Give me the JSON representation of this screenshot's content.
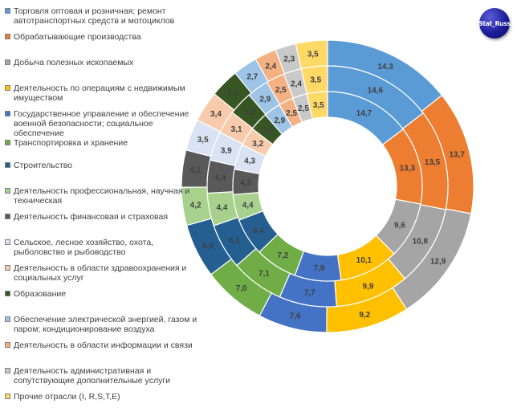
{
  "logo": {
    "text": "Stat_Russ"
  },
  "chart_data": {
    "type": "donut",
    "categories": [
      {
        "name": "Торговля оптовая и розничная; ремонт автотранспортных средств и мотоциклов",
        "color": "#5b9bd5"
      },
      {
        "name": "Обрабатывающие производства",
        "color": "#ed7d31"
      },
      {
        "name": "Добыча полезных ископаемых",
        "color": "#a5a5a5"
      },
      {
        "name": "Деятельность по операциям с недвижимым имуществом",
        "color": "#ffc000"
      },
      {
        "name": "Государственное управление и обеспечение военной безопасности; социальное обеспечение",
        "color": "#4472c4"
      },
      {
        "name": "Транспортировка и хранение",
        "color": "#70ad47"
      },
      {
        "name": "Строительство",
        "color": "#255e91"
      },
      {
        "name": "Деятельность профессиональная, научная и техническая",
        "color": "#a9d18e"
      },
      {
        "name": "Деятельность финансовая и страховая",
        "color": "#595959"
      },
      {
        "name": "Сельское, лесное хозяйство, охота, рыболовство и рыбоводство",
        "color": "#dae3f3"
      },
      {
        "name": "Деятельность в области здравоохранения и социальных услуг",
        "color": "#f8cbad"
      },
      {
        "name": "Образование",
        "color": "#375623"
      },
      {
        "name": "Обеспечение электрической энергией, газом и паром; кондиционирование воздуха",
        "color": "#9dc3e6"
      },
      {
        "name": "Деятельность в области информации и связи",
        "color": "#f4b183"
      },
      {
        "name": "Деятельность административная и сопутствующие дополнительные услуги",
        "color": "#c9c9c9"
      },
      {
        "name": "Прочие отрасли (I, R,S,T,E)",
        "color": "#ffd966"
      }
    ],
    "series": [
      {
        "values": [
          14.3,
          13.7,
          12.9,
          9.2,
          7.6,
          7.0,
          6.0,
          4.2,
          4.1,
          3.5,
          3.4,
          3.2,
          2.7,
          2.4,
          2.3,
          3.5
        ],
        "labels": [
          "14,3",
          "13,7",
          "12,9",
          "9,2",
          "7,6",
          "7,0",
          "6,0",
          "4,2",
          "4,1",
          "3,5",
          "3,4",
          "3,2",
          "2,7",
          "2,4",
          "2,3",
          "3,5"
        ]
      },
      {
        "values": [
          14.6,
          13.5,
          10.8,
          9.9,
          7.7,
          7.1,
          6.1,
          4.4,
          4.4,
          3.9,
          3.1,
          3.2,
          2.9,
          2.5,
          2.4,
          3.5
        ],
        "labels": [
          "14,6",
          "13,5",
          "10,8",
          "9,9",
          "7,7",
          "7,1",
          "6,1",
          "4,4",
          "4,4",
          "3,9",
          "3,1",
          "3,2",
          "2,9",
          "2,5",
          "2,4",
          "3,5"
        ]
      },
      {
        "values": [
          14.7,
          13.3,
          9.6,
          10.1,
          7.9,
          7.2,
          6.4,
          4.4,
          4.3,
          4.3,
          3.2,
          3.2,
          2.9,
          2.5,
          2.5,
          3.5
        ],
        "labels": [
          "14,7",
          "13,3",
          "9,6",
          "10,1",
          "7,9",
          "7,2",
          "6,4",
          "4,4",
          "4,3",
          "4,3",
          "3,2",
          "3,2",
          "2,9",
          "2,5",
          "2,5",
          "3,5"
        ]
      }
    ]
  }
}
